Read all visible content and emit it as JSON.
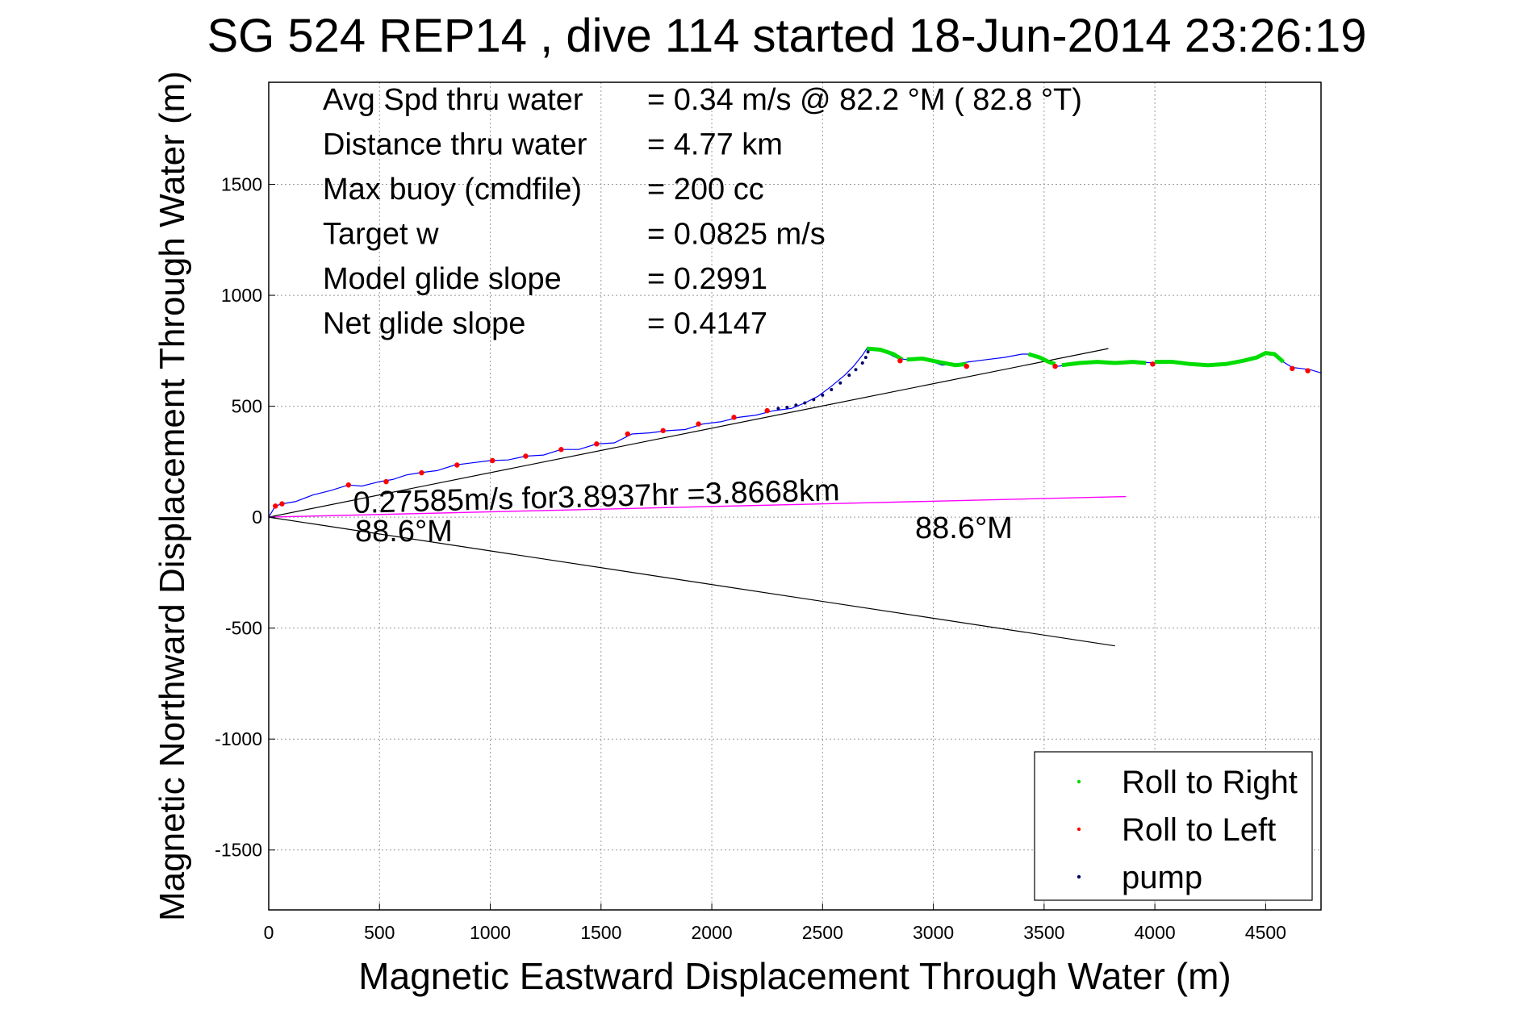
{
  "chart_data": {
    "type": "scatter",
    "title": "SG 524   REP14  , dive 114 started 18-Jun-2014 23:26:19",
    "xlabel": "Magnetic Eastward Displacement Through Water (m)",
    "ylabel": "Magnetic Northward Displacement Through Water (m)",
    "xlim": [
      0,
      4750
    ],
    "ylim": [
      -1770,
      1960
    ],
    "xticks": [
      0,
      500,
      1000,
      1500,
      2000,
      2500,
      3000,
      3500,
      4000,
      4500
    ],
    "yticks": [
      -1500,
      -1000,
      -500,
      0,
      500,
      1000,
      1500
    ],
    "xtick_labels": [
      "0",
      "500",
      "1000",
      "1500",
      "2000",
      "2500",
      "3000",
      "3500",
      "4000",
      "4500"
    ],
    "ytick_labels": [
      "-1500",
      "-1000",
      "-500",
      "0",
      "500",
      "1000",
      "1500"
    ],
    "grid": true,
    "legend_position": "bottom-right",
    "colors": {
      "track": "#0000ff",
      "roll_right": "#00dd00",
      "roll_left": "#ff0000",
      "pump": "#000066",
      "drift": "#ff00ff",
      "cone": "#000000"
    },
    "info_lines": [
      {
        "label": "Avg Spd thru water",
        "value": "=  0.34 m/s @  82.2 °M ( 82.8 °T)"
      },
      {
        "label": "Distance thru water",
        "value": "=  4.77 km"
      },
      {
        "label": "Max buoy (cmdfile)",
        "value": "= 200 cc"
      },
      {
        "label": "Target w",
        "value": "= 0.0825 m/s"
      },
      {
        "label": "Model glide slope",
        "value": "= 0.2991"
      },
      {
        "label": "Net glide slope",
        "value": "= 0.4147"
      }
    ],
    "annotations": [
      {
        "text": "0.27585m/s for3.8937hr =3.8668km"
      },
      {
        "text": "88.6°M"
      },
      {
        "text": "88.6°M"
      }
    ],
    "legend": [
      {
        "name": "Roll to Right",
        "color": "#00dd00"
      },
      {
        "name": "Roll to Left",
        "color": "#ff0000"
      },
      {
        "name": "pump",
        "color": "#000066"
      }
    ],
    "track": {
      "x": [
        0,
        30,
        60,
        120,
        200,
        280,
        360,
        420,
        500,
        560,
        620,
        680,
        760,
        840,
        920,
        1000,
        1080,
        1160,
        1240,
        1320,
        1400,
        1480,
        1560,
        1640,
        1720,
        1800,
        1880,
        1960,
        2040,
        2120,
        2200,
        2280,
        2360,
        2420,
        2480,
        2540,
        2600,
        2640,
        2680,
        2700,
        2720,
        2760,
        2800,
        2840,
        2880,
        2920,
        2980,
        3040,
        3100,
        3160,
        3240,
        3320,
        3400,
        3440,
        3480,
        3520,
        3560,
        3600,
        3680,
        3760,
        3840,
        3920,
        4000,
        4080,
        4160,
        4240,
        4320,
        4400,
        4460,
        4500,
        4540,
        4580,
        4620,
        4660,
        4700,
        4750
      ],
      "y": [
        0,
        50,
        60,
        70,
        100,
        120,
        145,
        140,
        160,
        170,
        190,
        200,
        210,
        235,
        245,
        255,
        258,
        275,
        280,
        305,
        305,
        330,
        335,
        375,
        380,
        390,
        395,
        420,
        430,
        450,
        460,
        480,
        490,
        515,
        545,
        590,
        640,
        680,
        730,
        760,
        760,
        755,
        735,
        715,
        710,
        715,
        705,
        685,
        690,
        700,
        710,
        720,
        735,
        735,
        720,
        700,
        680,
        685,
        695,
        700,
        695,
        700,
        695,
        700,
        690,
        685,
        690,
        705,
        720,
        740,
        735,
        700,
        675,
        670,
        665,
        650
      ]
    },
    "roll_left_points": {
      "x": [
        30,
        60,
        360,
        530,
        690,
        850,
        1010,
        1160,
        1320,
        1480,
        1620,
        1780,
        1940,
        2100,
        2250,
        2850,
        3150,
        3550,
        3990,
        4620,
        4690
      ],
      "y": [
        50,
        60,
        145,
        160,
        200,
        235,
        255,
        275,
        305,
        330,
        375,
        390,
        420,
        450,
        480,
        705,
        680,
        680,
        690,
        670,
        660
      ]
    },
    "roll_right_segments": [
      {
        "x": [
          2700,
          2760,
          2820,
          2860
        ],
        "y": [
          760,
          755,
          735,
          710
        ]
      },
      {
        "x": [
          2880,
          2950,
          3020,
          3100,
          3150
        ],
        "y": [
          710,
          715,
          700,
          685,
          690
        ]
      },
      {
        "x": [
          3430,
          3480,
          3520,
          3550
        ],
        "y": [
          735,
          720,
          700,
          690
        ]
      },
      {
        "x": [
          3580,
          3660,
          3740,
          3820,
          3900,
          3960
        ],
        "y": [
          685,
          695,
          700,
          695,
          700,
          695
        ]
      },
      {
        "x": [
          4000,
          4080,
          4160,
          4240,
          4320,
          4400,
          4460,
          4500,
          4540,
          4580
        ],
        "y": [
          700,
          700,
          690,
          685,
          690,
          705,
          720,
          740,
          735,
          700
        ]
      }
    ],
    "pump_points": {
      "x": [
        2300,
        2340,
        2380,
        2420,
        2460,
        2500,
        2540,
        2580,
        2620,
        2650,
        2680,
        2695,
        2705
      ],
      "y": [
        490,
        495,
        505,
        515,
        530,
        550,
        575,
        605,
        640,
        665,
        695,
        720,
        745
      ]
    },
    "drift_line": {
      "x": [
        0,
        3870
      ],
      "y": [
        0,
        93
      ]
    },
    "cone_upper": {
      "x": [
        0,
        3790
      ],
      "y": [
        0,
        760
      ]
    },
    "cone_lower": {
      "x": [
        0,
        3820
      ],
      "y": [
        0,
        -580
      ]
    }
  }
}
